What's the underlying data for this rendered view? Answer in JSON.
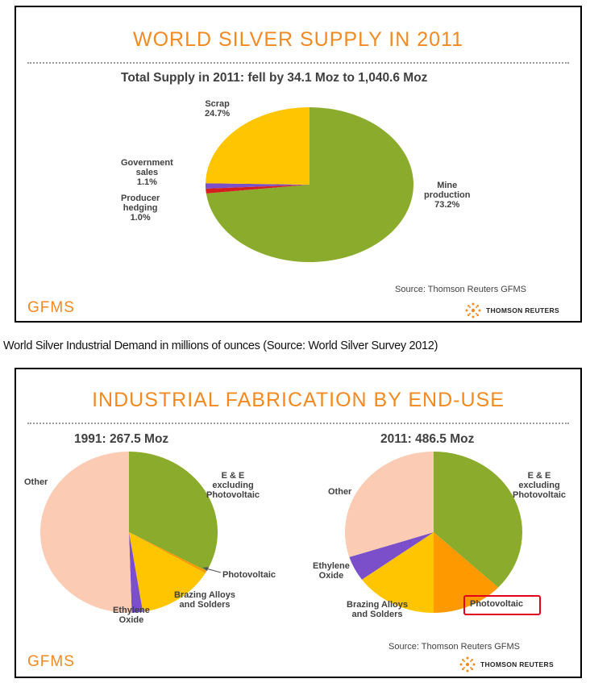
{
  "panel1": {
    "title": "WORLD SILVER SUPPLY IN 2011",
    "subtitle": "Total Supply in 2011: fell by 34.1 Moz to 1,040.6 Moz",
    "source": "Source: Thomson Reuters GFMS",
    "brand_left": "GFMS",
    "brand_right": "THOMSON REUTERS"
  },
  "caption": "World Silver Industrial Demand in millions of ounces (Source: World Silver Survey 2012)",
  "panel2": {
    "title": "INDUSTRIAL FABRICATION BY END-USE",
    "source": "Source: Thomson Reuters GFMS",
    "brand_left": "GFMS",
    "brand_right": "THOMSON REUTERS"
  },
  "colors": {
    "accent": "#f28a21",
    "mine": "#8aab2b",
    "scrap": "#fec500",
    "government": "#7a4fc9",
    "hedging": "#d61e1e",
    "ee": "#8aab2b",
    "photovoltaic": "#ff9900",
    "brazing": "#fec500",
    "ethylene": "#7a4fc9",
    "other": "#fbcbb3",
    "highlight": "#e3001b"
  },
  "chart_data": [
    {
      "type": "pie",
      "title": "Total Supply in 2011: fell by 34.1 Moz to 1,040.6 Moz",
      "slices": [
        {
          "name": "Mine production",
          "lines": [
            "Mine",
            "production",
            "73.2%"
          ],
          "value": 73.2,
          "color_key": "mine"
        },
        {
          "name": "Producer hedging",
          "lines": [
            "Producer",
            "hedging",
            "1.0%"
          ],
          "value": 1.0,
          "color_key": "hedging"
        },
        {
          "name": "Government sales",
          "lines": [
            "Government",
            "sales",
            "1.1%"
          ],
          "value": 1.1,
          "color_key": "government"
        },
        {
          "name": "Scrap",
          "lines": [
            "Scrap",
            "24.7%"
          ],
          "value": 24.7,
          "color_key": "scrap"
        }
      ]
    },
    {
      "type": "pie",
      "title": "1991: 267.5 Moz",
      "slices": [
        {
          "name": "E & E excluding Photovoltaic",
          "lines": [
            "E & E",
            "excluding",
            "Photovoltaic"
          ],
          "value": 33.0,
          "color_key": "ee"
        },
        {
          "name": "Photovoltaic",
          "lines": [
            "Photovoltaic"
          ],
          "value": 0.5,
          "color_key": "photovoltaic"
        },
        {
          "name": "Brazing Alloys and Solders",
          "lines": [
            "Brazing Alloys",
            "and Solders"
          ],
          "value": 14.0,
          "color_key": "brazing"
        },
        {
          "name": "Ethylene Oxide",
          "lines": [
            "Ethylene",
            "Oxide"
          ],
          "value": 2.0,
          "color_key": "ethylene"
        },
        {
          "name": "Other",
          "lines": [
            "Other"
          ],
          "value": 50.5,
          "color_key": "other"
        }
      ]
    },
    {
      "type": "pie",
      "title": "2011: 486.5 Moz",
      "slices": [
        {
          "name": "E & E excluding Photovoltaic",
          "lines": [
            "E & E",
            "excluding",
            "Photovoltaic"
          ],
          "value": 37.0,
          "color_key": "ee"
        },
        {
          "name": "Photovoltaic",
          "lines": [
            "Photovoltaic"
          ],
          "value": 13.0,
          "color_key": "photovoltaic"
        },
        {
          "name": "Brazing Alloys and Solders",
          "lines": [
            "Brazing Alloys",
            "and Solders"
          ],
          "value": 15.0,
          "color_key": "brazing"
        },
        {
          "name": "Ethylene Oxide",
          "lines": [
            "Ethylene",
            "Oxide"
          ],
          "value": 5.0,
          "color_key": "ethylene"
        },
        {
          "name": "Other",
          "lines": [
            "Other"
          ],
          "value": 30.0,
          "color_key": "other"
        }
      ]
    }
  ]
}
